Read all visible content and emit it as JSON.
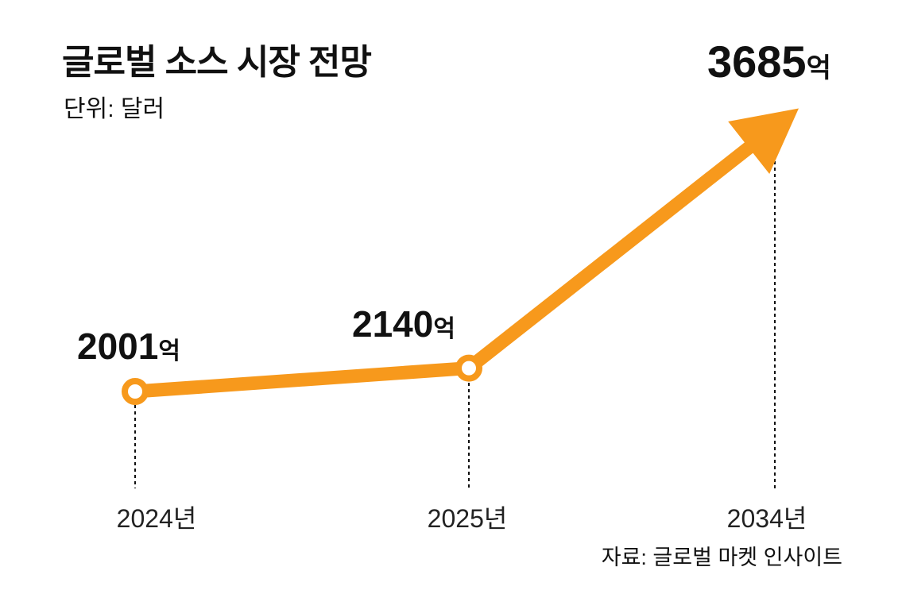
{
  "chart_data": {
    "type": "line",
    "title": "글로벌 소스 시장 전망",
    "subtitle": "단위: 달러",
    "categories": [
      "2024년",
      "2025년",
      "2034년"
    ],
    "values": [
      2001,
      2140,
      3685
    ],
    "value_labels": [
      "2001",
      "2140",
      "3685"
    ],
    "value_unit": "억",
    "xlabel": "",
    "ylabel": "",
    "grid": false,
    "source": "자료: 글로벌 마켓 인사이트",
    "color": "#F7991C"
  }
}
